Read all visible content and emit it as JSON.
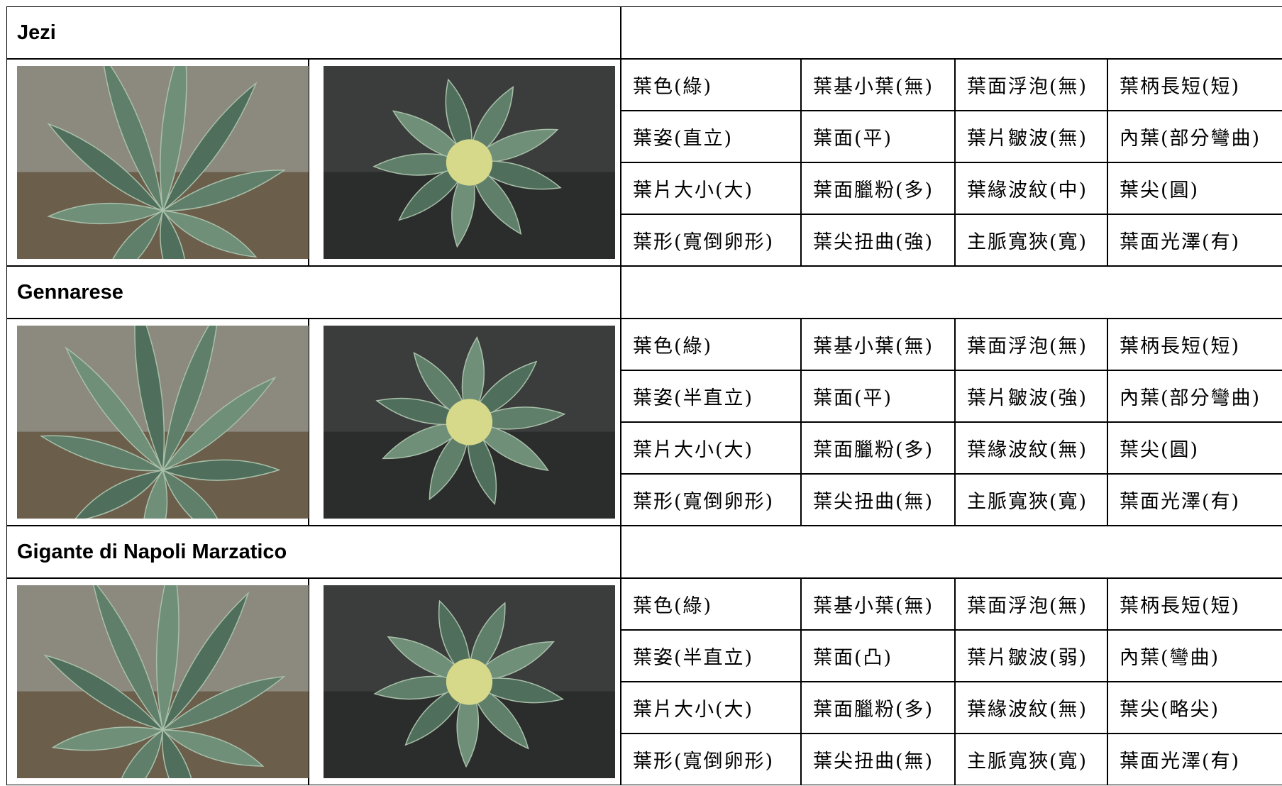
{
  "varieties": [
    {
      "name": "Jezi",
      "traits": [
        [
          "葉色(綠)",
          "葉基小葉(無)",
          "葉面浮泡(無)",
          "葉柄長短(短)"
        ],
        [
          "葉姿(直立)",
          "葉面(平)",
          "葉片皺波(無)",
          "內葉(部分彎曲)"
        ],
        [
          "葉片大小(大)",
          "葉面臘粉(多)",
          "葉緣波紋(中)",
          "葉尖(圓)"
        ],
        [
          "葉形(寬倒卵形)",
          "葉尖扭曲(強)",
          "主脈寬狹(寬)",
          "葉面光澤(有)"
        ]
      ]
    },
    {
      "name": "Gennarese",
      "traits": [
        [
          "葉色(綠)",
          "葉基小葉(無)",
          "葉面浮泡(無)",
          "葉柄長短(短)"
        ],
        [
          "葉姿(半直立)",
          "葉面(平)",
          "葉片皺波(強)",
          "內葉(部分彎曲)"
        ],
        [
          "葉片大小(大)",
          "葉面臘粉(多)",
          "葉緣波紋(無)",
          "葉尖(圓)"
        ],
        [
          "葉形(寬倒卵形)",
          "葉尖扭曲(無)",
          "主脈寬狹(寬)",
          "葉面光澤(有)"
        ]
      ]
    },
    {
      "name": "Gigante di Napoli Marzatico",
      "traits": [
        [
          "葉色(綠)",
          "葉基小葉(無)",
          "葉面浮泡(無)",
          "葉柄長短(短)"
        ],
        [
          "葉姿(半直立)",
          "葉面(凸)",
          "葉片皺波(弱)",
          "內葉(彎曲)"
        ],
        [
          "葉片大小(大)",
          "葉面臘粉(多)",
          "葉緣波紋(無)",
          "葉尖(略尖)"
        ],
        [
          "葉形(寬倒卵形)",
          "葉尖扭曲(無)",
          "主脈寬狹(寬)",
          "葉面光澤(有)"
        ]
      ]
    }
  ]
}
